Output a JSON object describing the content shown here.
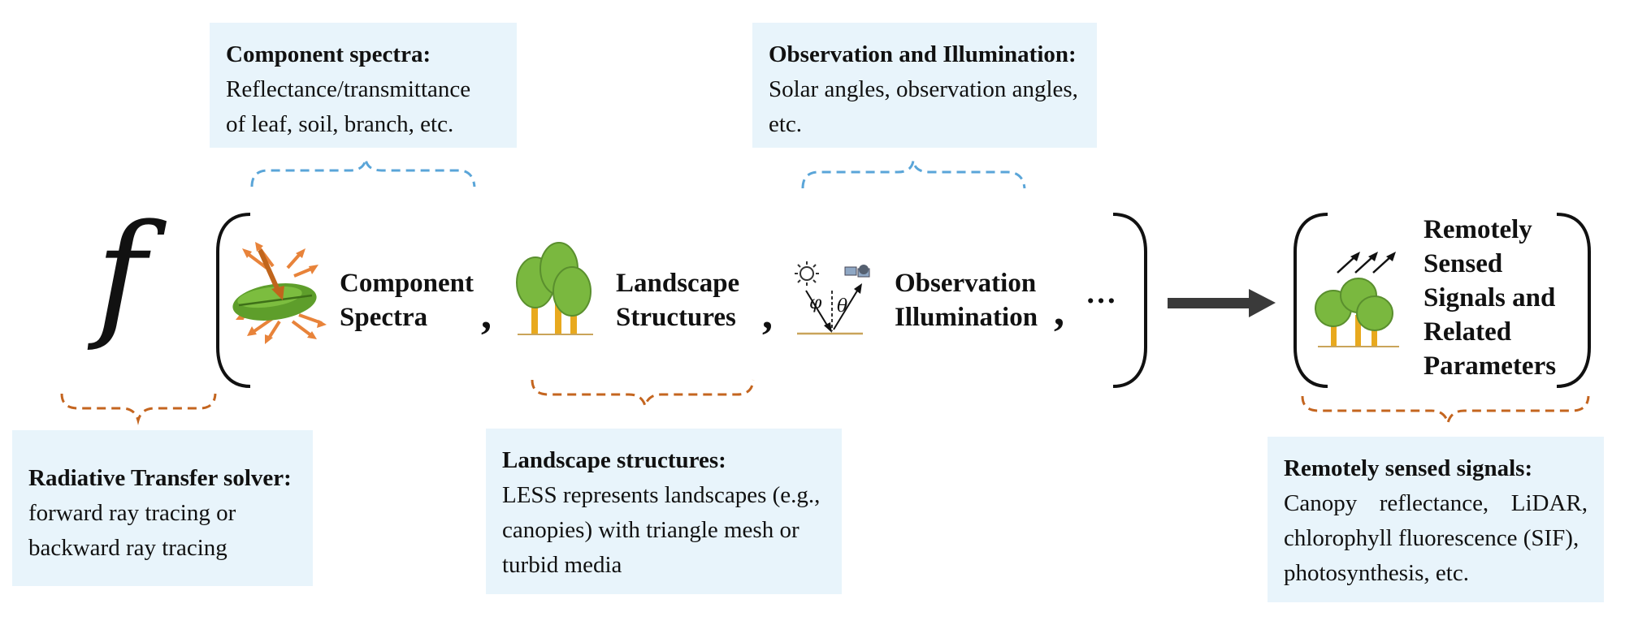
{
  "boxes": {
    "component_spectra": {
      "title": "Component spectra:",
      "lines": [
        "Reflectance/transmittance",
        "of leaf, soil, branch, etc."
      ]
    },
    "observation_illumination": {
      "title": "Observation and Illumination:",
      "lines": [
        "Solar angles, observation angles,",
        "etc."
      ]
    },
    "rt_solver": {
      "title": "Radiative Transfer solver:",
      "lines": [
        "forward ray tracing or",
        "backward ray tracing"
      ]
    },
    "landscape_structures": {
      "title": "Landscape structures:",
      "lines": [
        "LESS represents landscapes (e.g.,",
        "canopies) with triangle mesh or",
        "turbid media"
      ]
    },
    "remote_signals": {
      "title": "Remotely sensed signals:",
      "lines": [
        "Canopy reflectance, LiDAR,",
        "chlorophyll fluorescence (SIF),",
        "photosynthesis, etc."
      ]
    }
  },
  "formula": {
    "function_symbol": "f",
    "terms": [
      {
        "line1": "Component",
        "line2": "Spectra",
        "icon": "leaf-icon"
      },
      {
        "line1": "Landscape",
        "line2": "Structures",
        "icon": "trees-icon"
      },
      {
        "line1": "Observation",
        "line2": "Illumination",
        "icon": "sun-satellite-icon"
      }
    ],
    "comma": ",",
    "ellipsis": "…",
    "angle_phi": "φ",
    "angle_theta": "θ",
    "output": {
      "lines": [
        "Remotely",
        "Sensed",
        "Signals and",
        "Related",
        "Parameters"
      ],
      "icon": "signal-trees-icon"
    }
  },
  "colors": {
    "box_background": "#e8f4fb",
    "blue_brace": "#5aa5d8",
    "orange_brace": "#c4651f",
    "arrow": "#3a3a3a",
    "leaf_green": "#5e9e2b",
    "tree_green": "#7ab83f",
    "trunk_yellow": "#e8a91e",
    "leaf_arrows": "#e8833a"
  }
}
